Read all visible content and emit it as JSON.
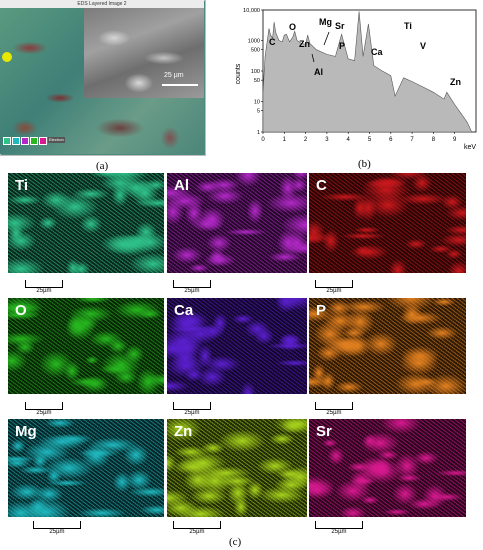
{
  "panel_a": {
    "window_title": "EDS Layered Image 2",
    "scale_label": "25 µm",
    "legend_text": "Electron",
    "caption": "(a)"
  },
  "panel_b": {
    "caption": "(b)",
    "ylabel": "counts",
    "xlabel": "keV",
    "element_labels": [
      "C",
      "O",
      "Zn",
      "Al",
      "Mg",
      "Sr",
      "P",
      "Ca",
      "Ti",
      "V",
      "Zn"
    ]
  },
  "chart_data": {
    "type": "area",
    "ylabel": "counts",
    "xlabel": "keV",
    "y_scale": "log",
    "xlim": [
      0,
      10
    ],
    "ylim": [
      1,
      10000
    ],
    "x_ticks": [
      "0",
      "1",
      "2",
      "3",
      "4",
      "5",
      "6",
      "7",
      "8",
      "9"
    ],
    "y_ticks": [
      "10,000",
      "1000",
      "500",
      "100",
      "50",
      "10",
      "5",
      "1"
    ],
    "x": [
      0.0,
      0.1,
      0.2,
      0.28,
      0.35,
      0.45,
      0.52,
      0.6,
      0.75,
      0.9,
      1.0,
      1.1,
      1.25,
      1.4,
      1.49,
      1.6,
      1.8,
      2.0,
      2.1,
      2.2,
      2.5,
      3.0,
      3.4,
      3.69,
      4.0,
      4.3,
      4.51,
      4.7,
      4.95,
      5.2,
      5.6,
      6.0,
      6.2,
      6.6,
      7.0,
      7.5,
      8.0,
      8.5,
      8.63,
      9.0,
      9.3,
      9.6,
      9.8
    ],
    "y": [
      20,
      300,
      1000,
      2500,
      1500,
      1200,
      4000,
      1800,
      1000,
      900,
      1500,
      1600,
      900,
      1300,
      2000,
      1000,
      800,
      750,
      1500,
      800,
      500,
      350,
      300,
      1600,
      250,
      220,
      9000,
      300,
      3500,
      150,
      100,
      70,
      15,
      60,
      45,
      30,
      20,
      12,
      20,
      8,
      4,
      2,
      1
    ],
    "annotations": [
      {
        "label": "C",
        "x": 0.28
      },
      {
        "label": "O",
        "x": 0.52
      },
      {
        "label": "Zn",
        "x": 1.01
      },
      {
        "label": "Mg",
        "x": 1.25
      },
      {
        "label": "Al",
        "x": 1.49
      },
      {
        "label": "Sr",
        "x": 1.81
      },
      {
        "label": "P",
        "x": 2.01
      },
      {
        "label": "Ca",
        "x": 3.69
      },
      {
        "label": "Ti",
        "x": 4.51
      },
      {
        "label": "V",
        "x": 4.95
      },
      {
        "label": "Zn",
        "x": 8.63
      }
    ]
  },
  "panel_c": {
    "caption": "(c)",
    "scale_label": "25µm",
    "tiles": [
      {
        "element": "Ti",
        "color": "#2fc28a"
      },
      {
        "element": "Al",
        "color": "#b328c8"
      },
      {
        "element": "C",
        "color": "#c8181c"
      },
      {
        "element": "O",
        "color": "#27b81f"
      },
      {
        "element": "Ca",
        "color": "#5b1fd0"
      },
      {
        "element": "P",
        "color": "#e2801f"
      },
      {
        "element": "Mg",
        "color": "#1fb9bf"
      },
      {
        "element": "Zn",
        "color": "#a6d21c"
      },
      {
        "element": "Sr",
        "color": "#d8198f"
      }
    ]
  }
}
